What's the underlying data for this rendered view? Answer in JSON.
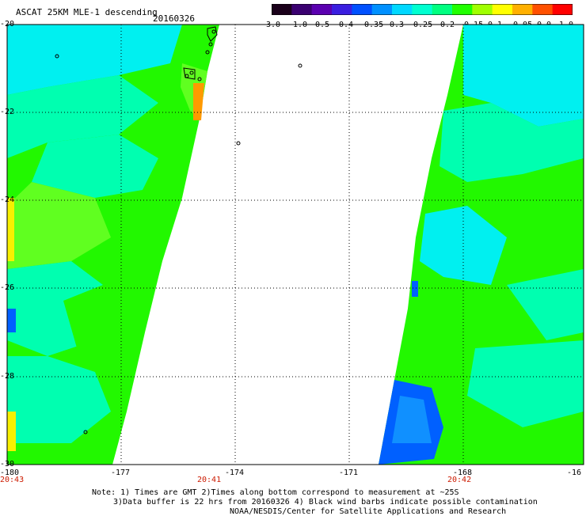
{
  "header": {
    "title": "ASCAT 25KM MLE-1 descending",
    "date": "20160326"
  },
  "colorbar": {
    "labels": [
      "-3.0",
      "-1.0",
      "-0.5",
      "-0.4",
      "-0.35",
      "-0.3",
      "-0.25",
      "-0.2",
      "-0.15",
      "-0.1",
      "-0.05",
      "0.0",
      "1.0"
    ],
    "colors": [
      "#1a001a",
      "#3a0070",
      "#5a00b0",
      "#3a1ee0",
      "#0050ff",
      "#0090ff",
      "#00d8ff",
      "#00ffd0",
      "#00ff80",
      "#20ff00",
      "#a0ff00",
      "#ffff00",
      "#ffb000",
      "#ff5000",
      "#ff0000"
    ]
  },
  "map": {
    "lat_labels": [
      "-20",
      "-22",
      "-24",
      "-26",
      "-28",
      "-30"
    ],
    "lon_labels": [
      "-180",
      "-177",
      "-174",
      "-171",
      "-168",
      "-16"
    ],
    "time_labels": [
      "20:43",
      "20:41",
      "20:42"
    ]
  },
  "notes": {
    "line1": "Note: 1) Times are GMT 2)Times along bottom correspond to measurement at ~25S",
    "line2": "3)Data buffer is 22 hrs from 20160326 4) Black wind barbs indicate possible contamination",
    "line3": "NOAA/NESDIS/Center for Satellite Applications and Research"
  }
}
